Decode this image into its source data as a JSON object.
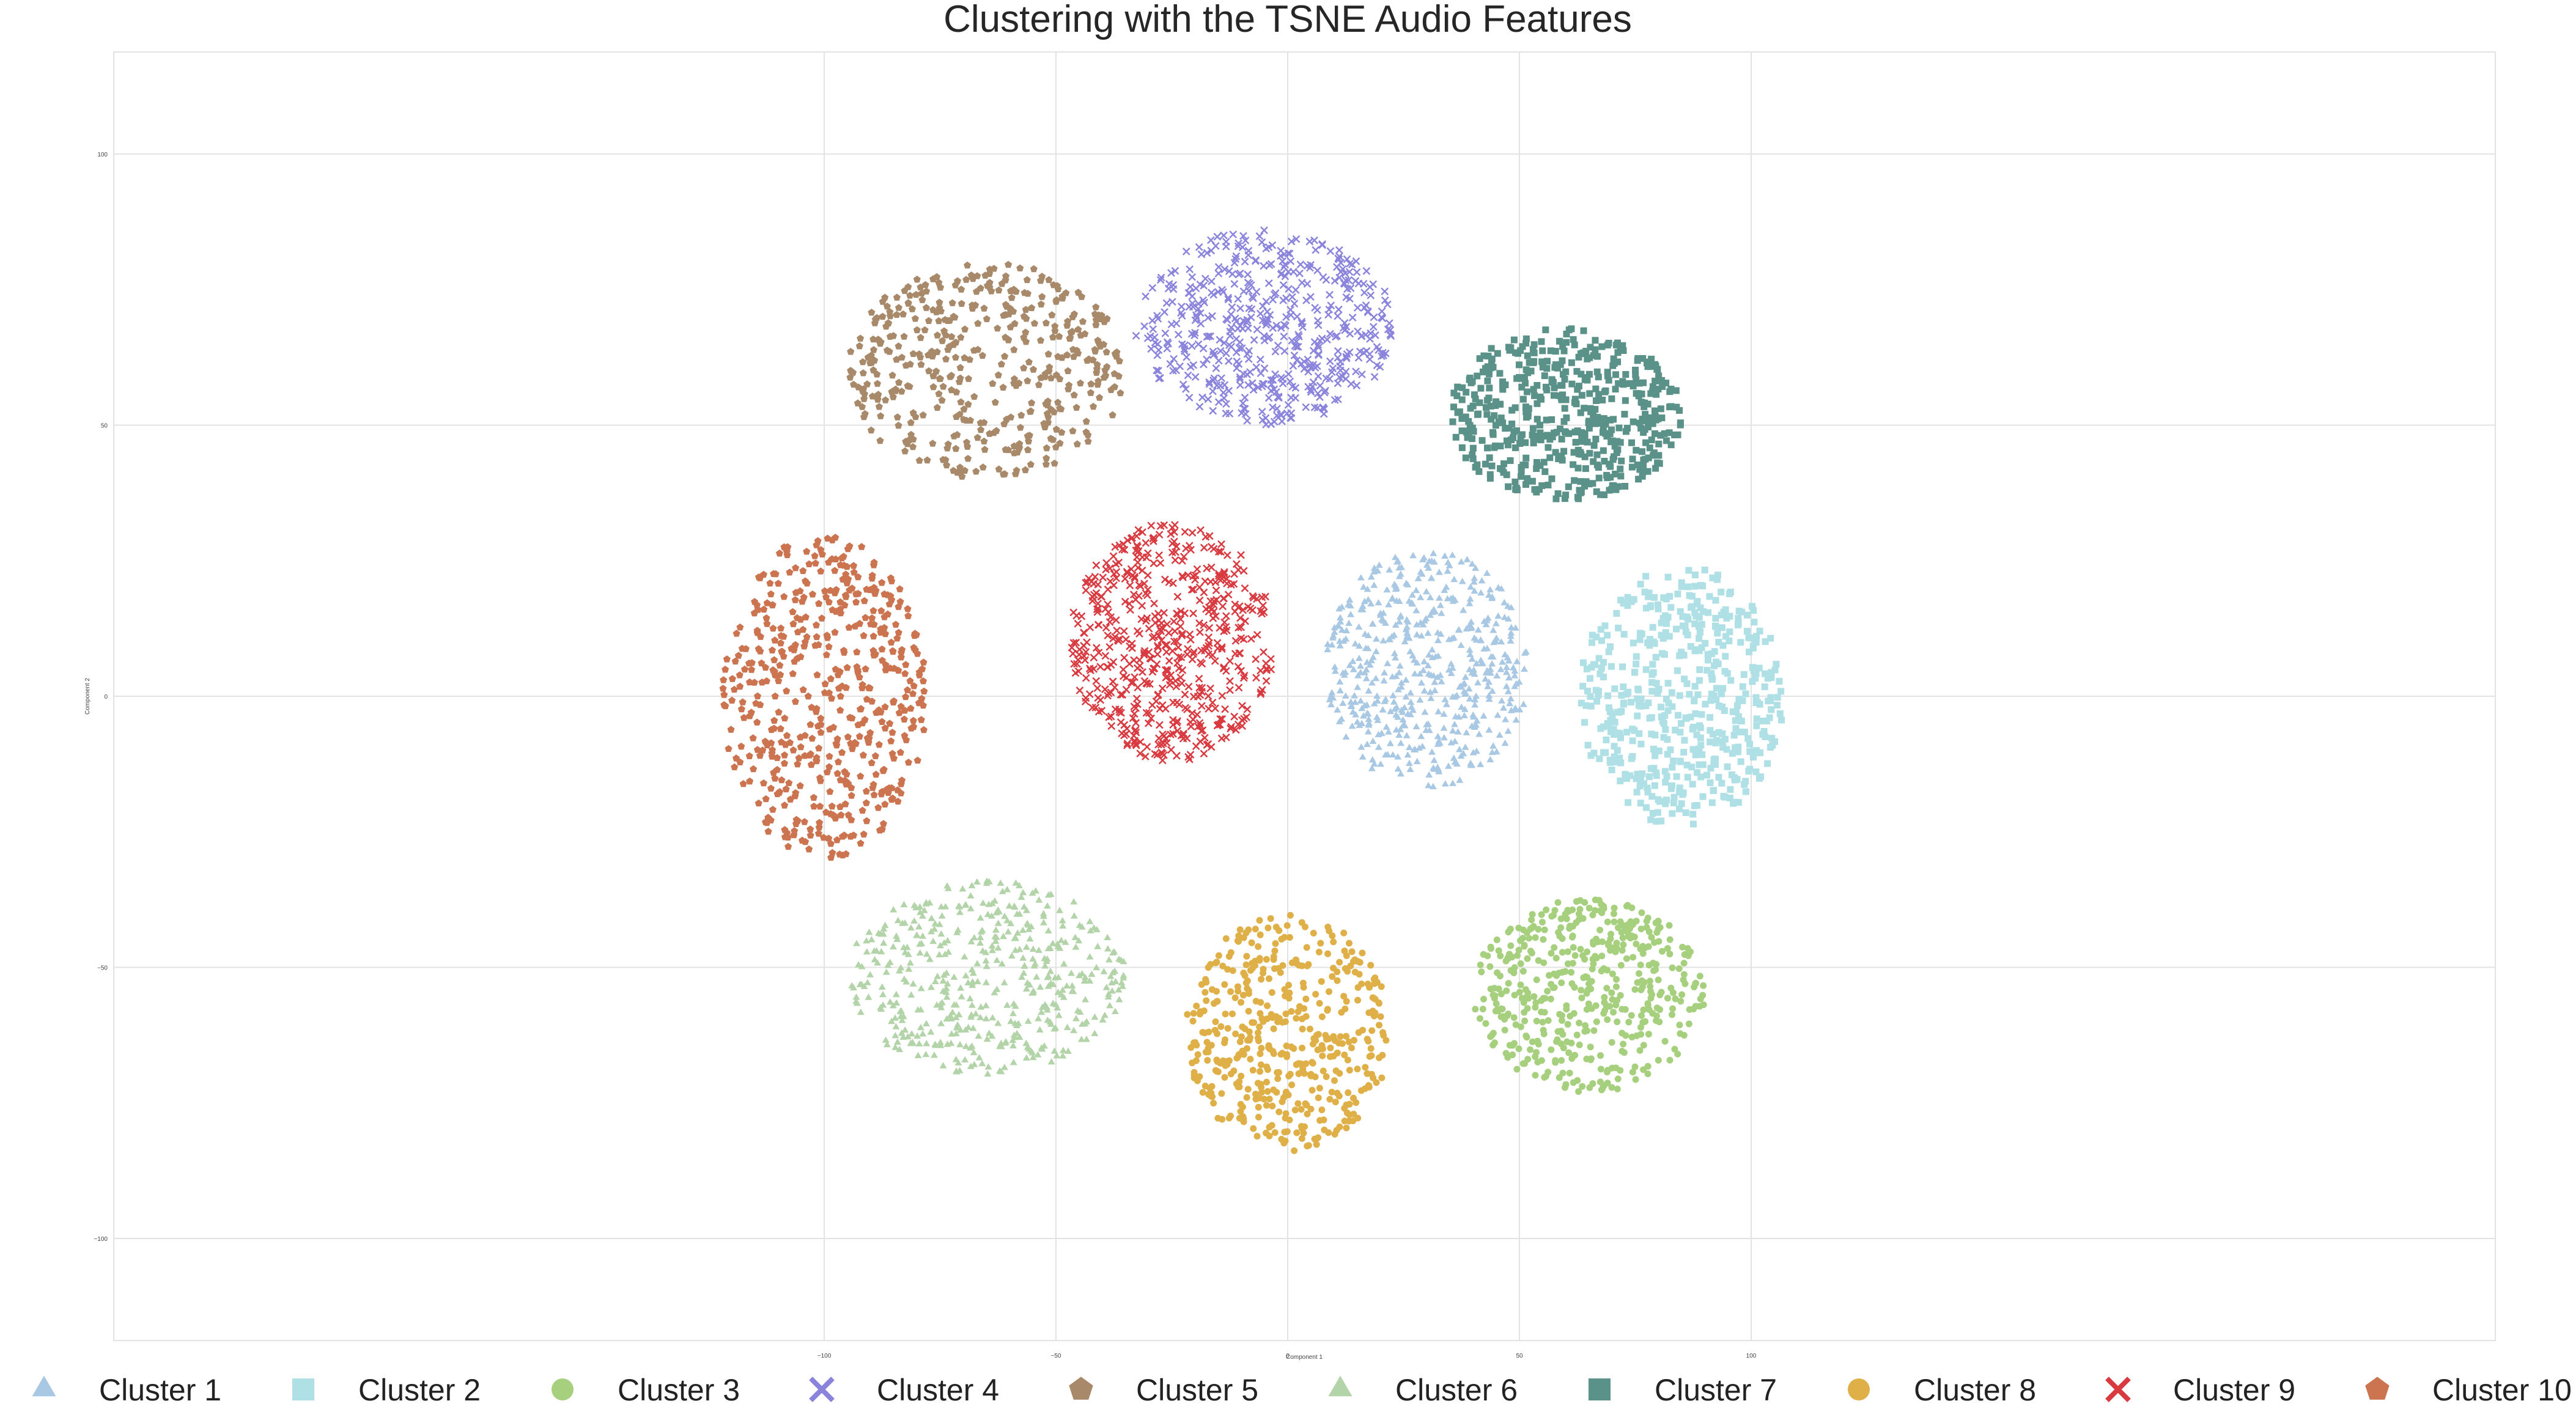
{
  "chart_data": {
    "type": "scatter",
    "title": "Clustering with the TSNE Audio Features",
    "xlabel": "Component 1",
    "ylabel": "Component 2",
    "xlim": [
      -130,
      130
    ],
    "ylim": [
      -118,
      119
    ],
    "xticks": [
      -100,
      -50,
      0,
      50,
      100
    ],
    "yticks": [
      -100,
      -50,
      0,
      50,
      100
    ],
    "grid": true,
    "legend_position": "bottom",
    "series": [
      {
        "name": "Cluster 1",
        "marker": "triangle",
        "color": "#a8c8e3",
        "center": [
          30,
          5
        ],
        "spread": [
          22,
          22
        ],
        "count": 520
      },
      {
        "name": "Cluster 2",
        "marker": "square",
        "color": "#aee0e6",
        "center": [
          85,
          0
        ],
        "spread": [
          22,
          24
        ],
        "count": 520
      },
      {
        "name": "Cluster 3",
        "marker": "circle",
        "color": "#a7d07e",
        "center": [
          65,
          -55
        ],
        "spread": [
          25,
          18
        ],
        "count": 480
      },
      {
        "name": "Cluster 4",
        "marker": "x",
        "color": "#8a84dc",
        "center": [
          -5,
          68
        ],
        "spread": [
          28,
          18
        ],
        "count": 520
      },
      {
        "name": "Cluster 5",
        "marker": "pentagon",
        "color": "#a88a6a",
        "center": [
          -65,
          60
        ],
        "spread": [
          30,
          20
        ],
        "count": 440
      },
      {
        "name": "Cluster 6",
        "marker": "triangle",
        "color": "#b3d4a8",
        "center": [
          -65,
          -52
        ],
        "spread": [
          30,
          18
        ],
        "count": 480
      },
      {
        "name": "Cluster 7",
        "marker": "square",
        "color": "#5a9188",
        "center": [
          60,
          52
        ],
        "spread": [
          25,
          16
        ],
        "count": 520
      },
      {
        "name": "Cluster 8",
        "marker": "circle",
        "color": "#e0b048",
        "center": [
          0,
          -62
        ],
        "spread": [
          22,
          22
        ],
        "count": 480
      },
      {
        "name": "Cluster 9",
        "marker": "x",
        "color": "#d93a40",
        "center": [
          -25,
          10
        ],
        "spread": [
          22,
          22
        ],
        "count": 560
      },
      {
        "name": "Cluster 10",
        "marker": "pentagon",
        "color": "#cc7450",
        "center": [
          -100,
          0
        ],
        "spread": [
          22,
          30
        ],
        "count": 520
      }
    ]
  }
}
